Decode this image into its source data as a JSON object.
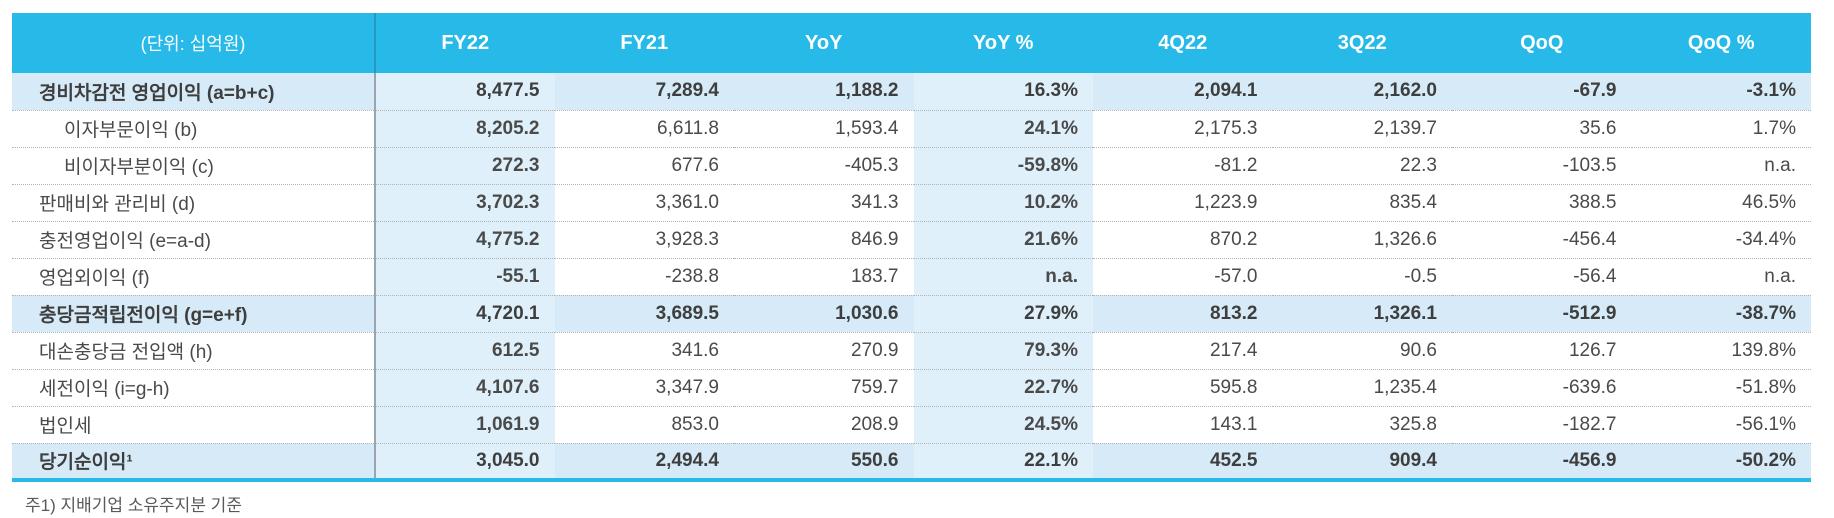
{
  "table": {
    "unit_label": "(단위: 십억원)",
    "columns": [
      "FY22",
      "FY21",
      "YoY",
      "YoY %",
      "4Q22",
      "3Q22",
      "QoQ",
      "QoQ %"
    ],
    "highlight_columns": [
      0,
      3
    ],
    "rows": [
      {
        "label": "경비차감전 영업이익 (a=b+c)",
        "style": "total",
        "indent": false,
        "values": [
          "8,477.5",
          "7,289.4",
          "1,188.2",
          "16.3%",
          "2,094.1",
          "2,162.0",
          "-67.9",
          "-3.1%"
        ]
      },
      {
        "label": "이자부문이익 (b)",
        "style": "normal",
        "indent": true,
        "values": [
          "8,205.2",
          "6,611.8",
          "1,593.4",
          "24.1%",
          "2,175.3",
          "2,139.7",
          "35.6",
          "1.7%"
        ]
      },
      {
        "label": "비이자부분이익 (c)",
        "style": "normal",
        "indent": true,
        "values": [
          "272.3",
          "677.6",
          "-405.3",
          "-59.8%",
          "-81.2",
          "22.3",
          "-103.5",
          "n.a."
        ]
      },
      {
        "label": "판매비와 관리비 (d)",
        "style": "normal",
        "indent": false,
        "values": [
          "3,702.3",
          "3,361.0",
          "341.3",
          "10.2%",
          "1,223.9",
          "835.4",
          "388.5",
          "46.5%"
        ]
      },
      {
        "label": "충전영업이익 (e=a-d)",
        "style": "normal",
        "indent": false,
        "values": [
          "4,775.2",
          "3,928.3",
          "846.9",
          "21.6%",
          "870.2",
          "1,326.6",
          "-456.4",
          "-34.4%"
        ]
      },
      {
        "label": "영업외이익 (f)",
        "style": "normal",
        "indent": false,
        "values": [
          "-55.1",
          "-238.8",
          "183.7",
          "n.a.",
          "-57.0",
          "-0.5",
          "-56.4",
          "n.a."
        ]
      },
      {
        "label": "충당금적립전이익 (g=e+f)",
        "style": "total",
        "indent": false,
        "values": [
          "4,720.1",
          "3,689.5",
          "1,030.6",
          "27.9%",
          "813.2",
          "1,326.1",
          "-512.9",
          "-38.7%"
        ]
      },
      {
        "label": "대손충당금 전입액 (h)",
        "style": "normal",
        "indent": false,
        "values": [
          "612.5",
          "341.6",
          "270.9",
          "79.3%",
          "217.4",
          "90.6",
          "126.7",
          "139.8%"
        ]
      },
      {
        "label": "세전이익 (i=g-h)",
        "style": "normal",
        "indent": false,
        "values": [
          "4,107.6",
          "3,347.9",
          "759.7",
          "22.7%",
          "595.8",
          "1,235.4",
          "-639.6",
          "-51.8%"
        ]
      },
      {
        "label": "법인세",
        "style": "normal",
        "indent": false,
        "values": [
          "1,061.9",
          "853.0",
          "208.9",
          "24.5%",
          "143.1",
          "325.8",
          "-182.7",
          "-56.1%"
        ]
      },
      {
        "label": "당기순이익¹",
        "style": "total",
        "indent": false,
        "values": [
          "3,045.0",
          "2,494.4",
          "550.6",
          "22.1%",
          "452.5",
          "909.4",
          "-456.9",
          "-50.2%"
        ]
      }
    ]
  },
  "footnote": "주1) 지배기업 소유주지분 기준",
  "colors": {
    "header_bg": "#27BAE8",
    "header_text": "#FFFFFF",
    "row_highlight": "#D6EAF7",
    "column_highlight": "#DFF0FA",
    "bottom_border": "#27BAE8",
    "body_text": "#4A4A4A"
  },
  "chart_data": {
    "type": "table",
    "title": "손익 요약 (단위: 십억원)",
    "columns": [
      "FY22",
      "FY21",
      "YoY",
      "YoY %",
      "4Q22",
      "3Q22",
      "QoQ",
      "QoQ %"
    ],
    "rows": [
      {
        "label": "경비차감전 영업이익 (a=b+c)",
        "FY22": 8477.5,
        "FY21": 7289.4,
        "YoY": 1188.2,
        "YoY_pct": "16.3%",
        "4Q22": 2094.1,
        "3Q22": 2162.0,
        "QoQ": -67.9,
        "QoQ_pct": "-3.1%"
      },
      {
        "label": "이자부문이익 (b)",
        "FY22": 8205.2,
        "FY21": 6611.8,
        "YoY": 1593.4,
        "YoY_pct": "24.1%",
        "4Q22": 2175.3,
        "3Q22": 2139.7,
        "QoQ": 35.6,
        "QoQ_pct": "1.7%"
      },
      {
        "label": "비이자부분이익 (c)",
        "FY22": 272.3,
        "FY21": 677.6,
        "YoY": -405.3,
        "YoY_pct": "-59.8%",
        "4Q22": -81.2,
        "3Q22": 22.3,
        "QoQ": -103.5,
        "QoQ_pct": "n.a."
      },
      {
        "label": "판매비와 관리비 (d)",
        "FY22": 3702.3,
        "FY21": 3361.0,
        "YoY": 341.3,
        "YoY_pct": "10.2%",
        "4Q22": 1223.9,
        "3Q22": 835.4,
        "QoQ": 388.5,
        "QoQ_pct": "46.5%"
      },
      {
        "label": "충전영업이익 (e=a-d)",
        "FY22": 4775.2,
        "FY21": 3928.3,
        "YoY": 846.9,
        "YoY_pct": "21.6%",
        "4Q22": 870.2,
        "3Q22": 1326.6,
        "QoQ": -456.4,
        "QoQ_pct": "-34.4%"
      },
      {
        "label": "영업외이익 (f)",
        "FY22": -55.1,
        "FY21": -238.8,
        "YoY": 183.7,
        "YoY_pct": "n.a.",
        "4Q22": -57.0,
        "3Q22": -0.5,
        "QoQ": -56.4,
        "QoQ_pct": "n.a."
      },
      {
        "label": "충당금적립전이익 (g=e+f)",
        "FY22": 4720.1,
        "FY21": 3689.5,
        "YoY": 1030.6,
        "YoY_pct": "27.9%",
        "4Q22": 813.2,
        "3Q22": 1326.1,
        "QoQ": -512.9,
        "QoQ_pct": "-38.7%"
      },
      {
        "label": "대손충당금 전입액 (h)",
        "FY22": 612.5,
        "FY21": 341.6,
        "YoY": 270.9,
        "YoY_pct": "79.3%",
        "4Q22": 217.4,
        "3Q22": 90.6,
        "QoQ": 126.7,
        "QoQ_pct": "139.8%"
      },
      {
        "label": "세전이익 (i=g-h)",
        "FY22": 4107.6,
        "FY21": 3347.9,
        "YoY": 759.7,
        "YoY_pct": "22.7%",
        "4Q22": 595.8,
        "3Q22": 1235.4,
        "QoQ": -639.6,
        "QoQ_pct": "-51.8%"
      },
      {
        "label": "법인세",
        "FY22": 1061.9,
        "FY21": 853.0,
        "YoY": 208.9,
        "YoY_pct": "24.5%",
        "4Q22": 143.1,
        "3Q22": 325.8,
        "QoQ": -182.7,
        "QoQ_pct": "-56.1%"
      },
      {
        "label": "당기순이익¹",
        "FY22": 3045.0,
        "FY21": 2494.4,
        "YoY": 550.6,
        "YoY_pct": "22.1%",
        "4Q22": 452.5,
        "3Q22": 909.4,
        "QoQ": -456.9,
        "QoQ_pct": "-50.2%"
      }
    ],
    "footnote": "주1) 지배기업 소유주지분 기준"
  }
}
